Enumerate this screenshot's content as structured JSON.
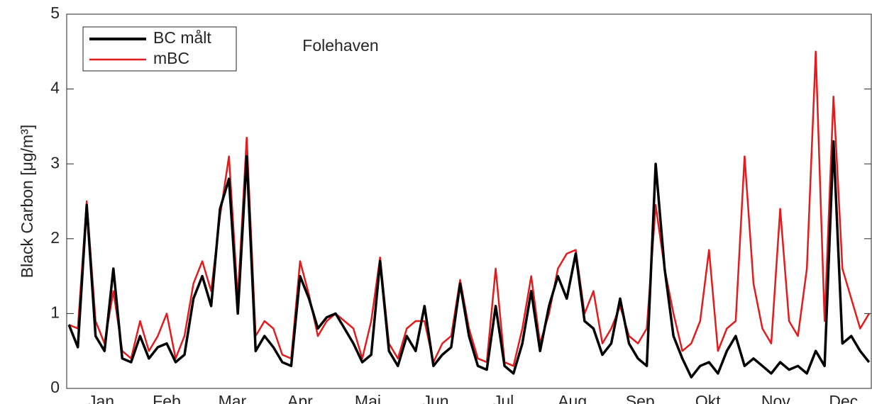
{
  "chart_data": {
    "type": "line",
    "title": "Folehaven",
    "y_label": "Black Carbon [μg/m³]",
    "x": [
      1,
      5,
      9,
      13,
      17,
      21,
      25,
      29,
      33,
      37,
      41,
      45,
      49,
      53,
      57,
      61,
      65,
      69,
      73,
      77,
      81,
      85,
      89,
      93,
      97,
      101,
      105,
      109,
      113,
      117,
      121,
      125,
      129,
      133,
      137,
      141,
      145,
      149,
      153,
      157,
      161,
      165,
      169,
      173,
      177,
      181,
      185,
      189,
      193,
      197,
      201,
      205,
      209,
      213,
      217,
      221,
      225,
      229,
      233,
      237,
      241,
      245,
      249,
      253,
      257,
      261,
      265,
      269,
      273,
      277,
      281,
      285,
      289,
      293,
      297,
      301,
      305,
      309,
      313,
      317,
      321,
      325,
      329,
      333,
      337,
      341,
      345,
      349,
      353,
      357,
      361
    ],
    "series": [
      {
        "name": "BC målt",
        "color": "#000000",
        "values": [
          0.85,
          0.55,
          2.45,
          0.7,
          0.5,
          1.6,
          0.4,
          0.35,
          0.7,
          0.4,
          0.55,
          0.6,
          0.35,
          0.45,
          1.2,
          1.5,
          1.1,
          2.4,
          2.8,
          1.0,
          3.1,
          0.5,
          0.7,
          0.55,
          0.35,
          0.3,
          1.5,
          1.2,
          0.8,
          0.95,
          1.0,
          0.8,
          0.6,
          0.35,
          0.45,
          1.7,
          0.5,
          0.3,
          0.7,
          0.5,
          1.1,
          0.3,
          0.45,
          0.55,
          1.4,
          0.7,
          0.3,
          0.25,
          1.1,
          0.3,
          0.2,
          0.6,
          1.3,
          0.5,
          1.1,
          1.5,
          1.2,
          1.8,
          0.9,
          0.8,
          0.45,
          0.6,
          1.2,
          0.6,
          0.4,
          0.3,
          3.0,
          1.6,
          0.7,
          0.4,
          0.15,
          0.3,
          0.35,
          0.2,
          0.5,
          0.7,
          0.3,
          0.4,
          0.3,
          0.2,
          0.35,
          0.25,
          0.3,
          0.2,
          0.5,
          0.3,
          3.3,
          0.6,
          0.7,
          0.5,
          0.35
        ]
      },
      {
        "name": "mBC",
        "color": "#e41a1c",
        "values": [
          0.85,
          0.8,
          2.5,
          0.9,
          0.6,
          1.3,
          0.5,
          0.4,
          0.9,
          0.5,
          0.7,
          1.0,
          0.4,
          0.7,
          1.4,
          1.7,
          1.3,
          2.3,
          3.1,
          1.2,
          3.35,
          0.7,
          0.9,
          0.8,
          0.45,
          0.4,
          1.7,
          1.25,
          0.7,
          0.9,
          1.0,
          0.9,
          0.8,
          0.4,
          0.9,
          1.75,
          0.6,
          0.4,
          0.8,
          0.9,
          0.9,
          0.35,
          0.6,
          0.7,
          1.45,
          0.8,
          0.4,
          0.35,
          1.6,
          0.35,
          0.3,
          0.8,
          1.5,
          0.6,
          1.0,
          1.6,
          1.8,
          1.85,
          1.0,
          1.3,
          0.6,
          0.8,
          1.1,
          0.7,
          0.6,
          0.8,
          2.45,
          1.6,
          1.0,
          0.5,
          0.6,
          0.9,
          1.85,
          0.5,
          0.8,
          0.9,
          3.1,
          1.4,
          0.8,
          0.6,
          2.4,
          0.9,
          0.7,
          1.6,
          4.5,
          0.9,
          3.9,
          1.6,
          1.2,
          0.8,
          1.0
        ]
      }
    ],
    "xlim": [
      0,
      362
    ],
    "xticks": [
      {
        "value": 15.5,
        "label": "Jan"
      },
      {
        "value": 45,
        "label": "Feb"
      },
      {
        "value": 74.5,
        "label": "Mar"
      },
      {
        "value": 105,
        "label": "Apr"
      },
      {
        "value": 135.5,
        "label": "Maj"
      },
      {
        "value": 166,
        "label": "Jun"
      },
      {
        "value": 196.5,
        "label": "Jul"
      },
      {
        "value": 227.5,
        "label": "Aug"
      },
      {
        "value": 258,
        "label": "Sep"
      },
      {
        "value": 288.5,
        "label": "Okt"
      },
      {
        "value": 319,
        "label": "Nov"
      },
      {
        "value": 349.5,
        "label": "Dec"
      }
    ],
    "ylim": [
      0,
      5
    ],
    "yticks": [
      0,
      1,
      2,
      3,
      4,
      5
    ],
    "grid": false,
    "legend": "upper-left"
  }
}
